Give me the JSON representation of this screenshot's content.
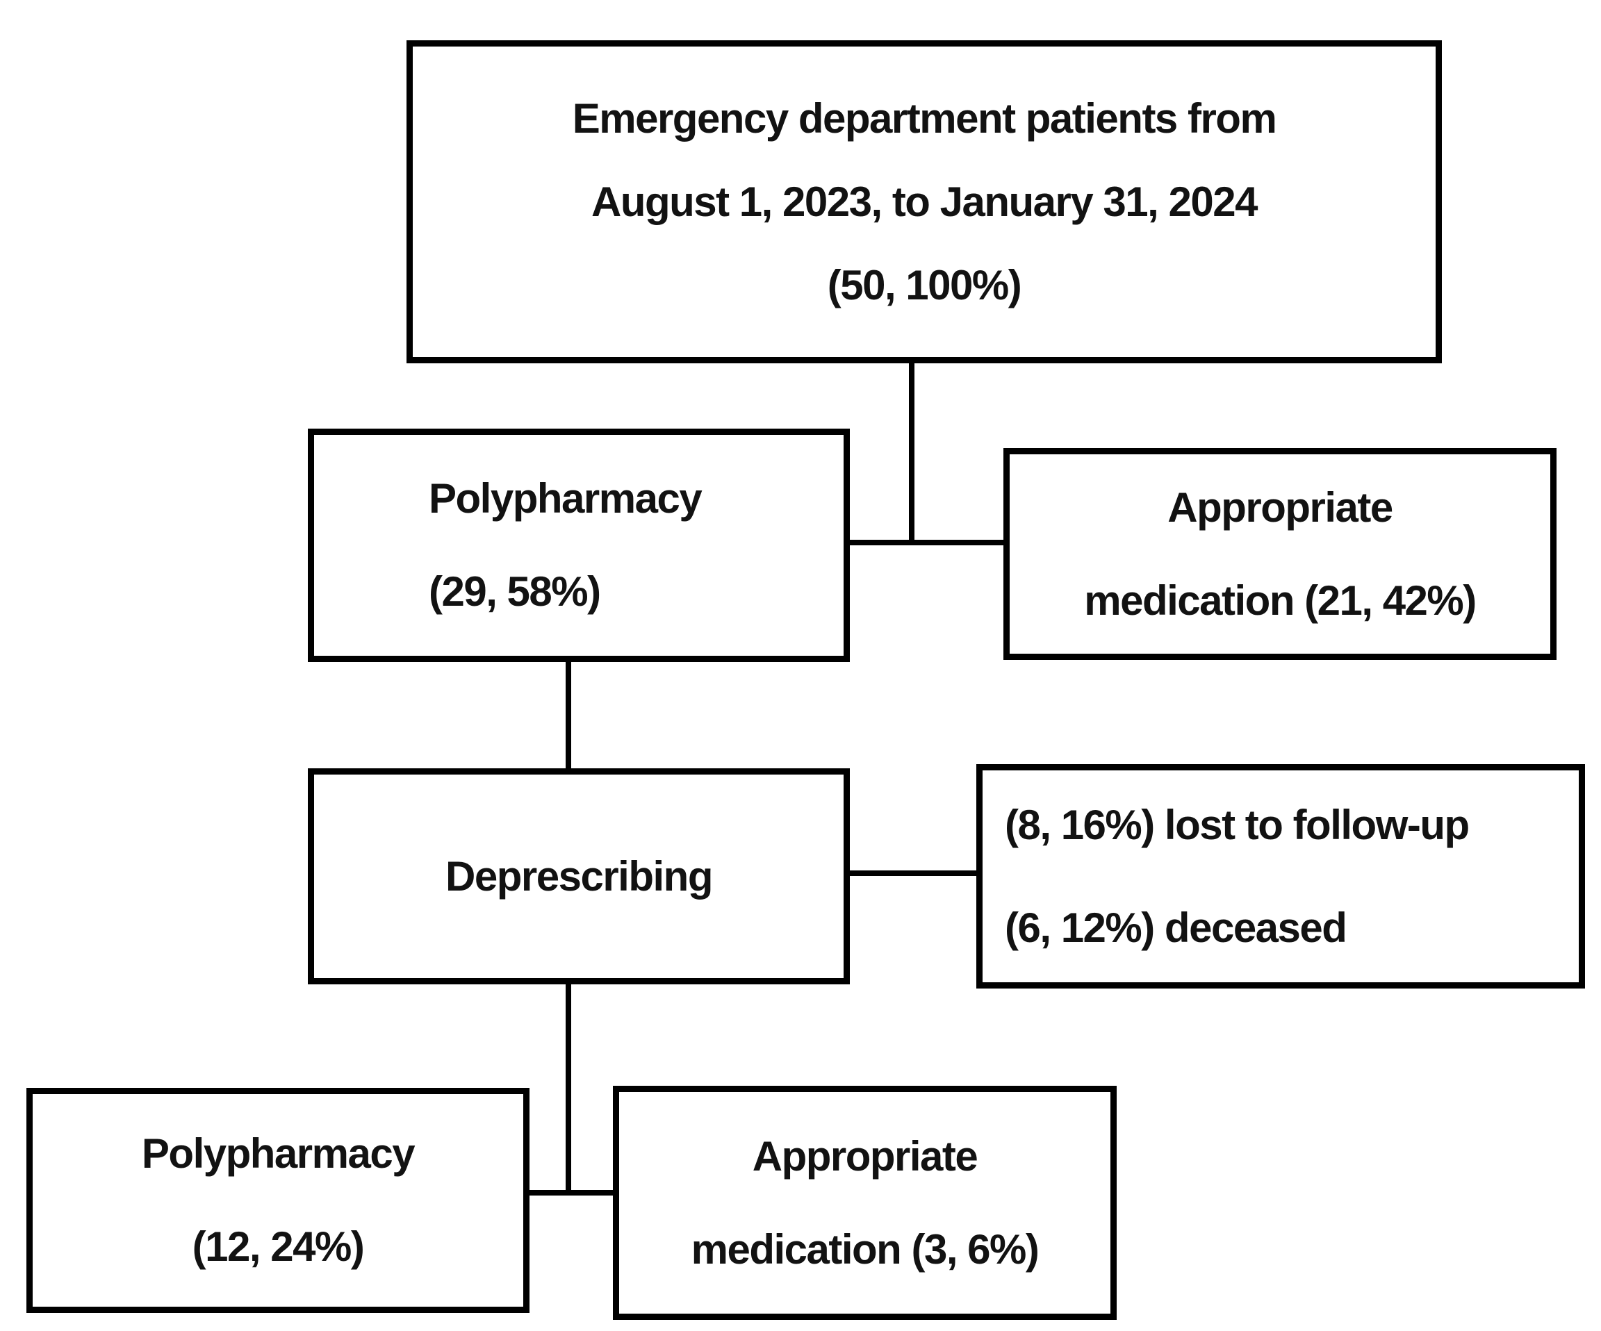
{
  "colors": {
    "border": "#000000",
    "background": "#ffffff",
    "text": "#121212"
  },
  "flowchart": {
    "top_box": {
      "line1": "Emergency department patients from",
      "line2": "August 1, 2023, to January 31, 2024",
      "line3": "(50, 100%)",
      "count": 50,
      "percent": "100%"
    },
    "polypharmacy_box": {
      "line1": "Polypharmacy",
      "line2": "(29, 58%)",
      "count": 29,
      "percent": "58%"
    },
    "appropriate_medication_box": {
      "line1": "Appropriate",
      "line2": "medication (21, 42%)",
      "count": 21,
      "percent": "42%"
    },
    "deprescribing_box": {
      "line1": "Deprescribing"
    },
    "attrition_box": {
      "line1": "(8, 16%) lost to follow-up",
      "line2": "(6, 12%) deceased",
      "lost_count": 8,
      "lost_percent": "16%",
      "deceased_count": 6,
      "deceased_percent": "12%"
    },
    "polypharmacy_followup_box": {
      "line1": "Polypharmacy",
      "line2": "(12, 24%)",
      "count": 12,
      "percent": "24%"
    },
    "appropriate_medication_followup_box": {
      "line1": "Appropriate",
      "line2": "medication (3, 6%)",
      "count": 3,
      "percent": "6%"
    }
  }
}
